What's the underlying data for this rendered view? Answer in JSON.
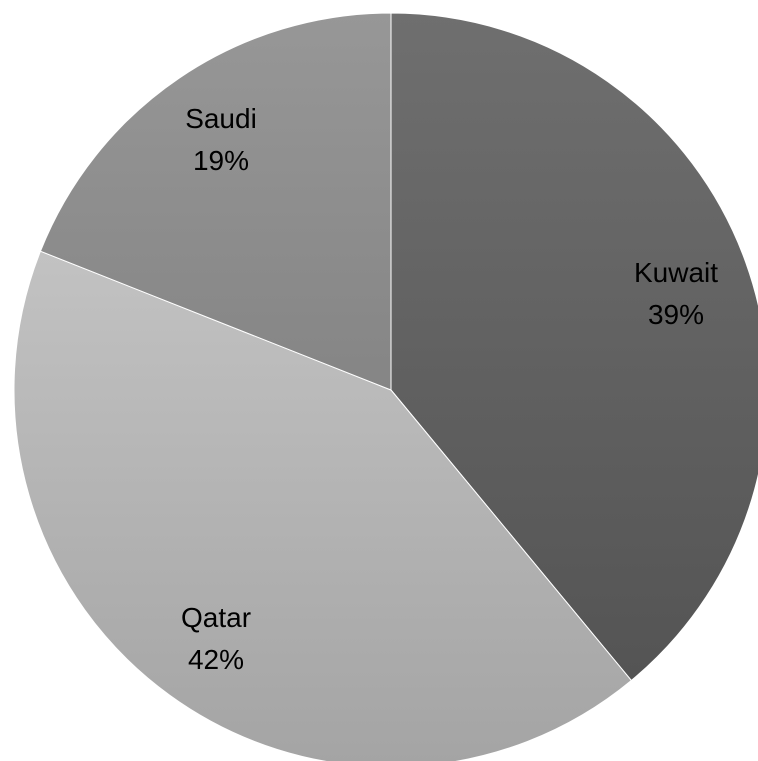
{
  "chart_data": {
    "type": "pie",
    "title": "",
    "slices": [
      {
        "name": "Kuwait",
        "value": 39,
        "label": "39%",
        "color": "#5d5d5d"
      },
      {
        "name": "Qatar",
        "value": 42,
        "label": "42%",
        "color": "#afafaf"
      },
      {
        "name": "Saudi",
        "value": 19,
        "label": "19%",
        "color": "#8c8c8c"
      }
    ],
    "start_angle_deg": 0,
    "direction": "clockwise",
    "legend": "none",
    "data_labels": "category-and-percent"
  }
}
